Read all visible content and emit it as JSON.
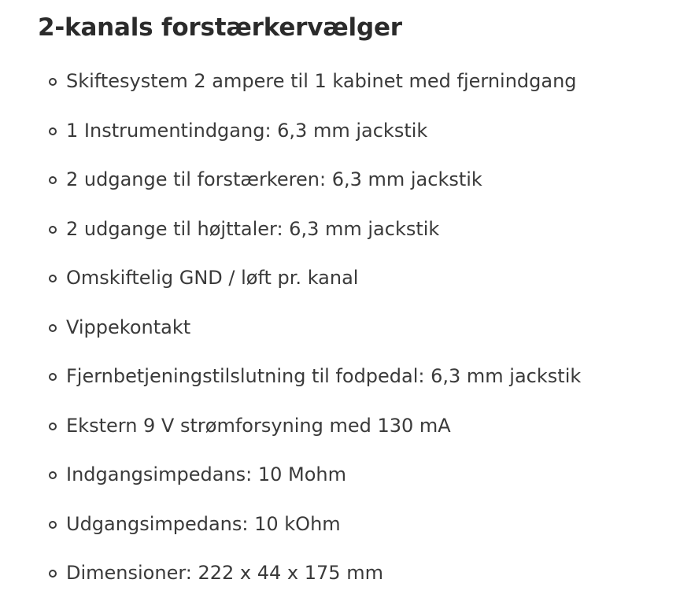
{
  "page": {
    "title": "2-kanals forstærkervælger",
    "specs": [
      "Skiftesystem 2 ampere til 1 kabinet med fjernindgang",
      "1 Instrumentindgang: 6,3 mm jackstik",
      "2 udgange til forstærkeren: 6,3 mm jackstik",
      "2 udgange til højttaler: 6,3 mm jackstik",
      "Omskiftelig GND / løft pr. kanal",
      "Vippekontakt",
      "Fjernbetjeningstilslutning til fodpedal: 6,3 mm jackstik",
      "Ekstern 9 V strømforsyning med 130 mA",
      "Indgangsimpedans: 10 Mohm",
      "Udgangsimpedans: 10 kOhm",
      "Dimensioner: 222 x 44 x 175 mm"
    ]
  },
  "colors": {
    "background": "#ffffff",
    "title_text": "#2b2b2b",
    "body_text": "#3a3a3a"
  }
}
